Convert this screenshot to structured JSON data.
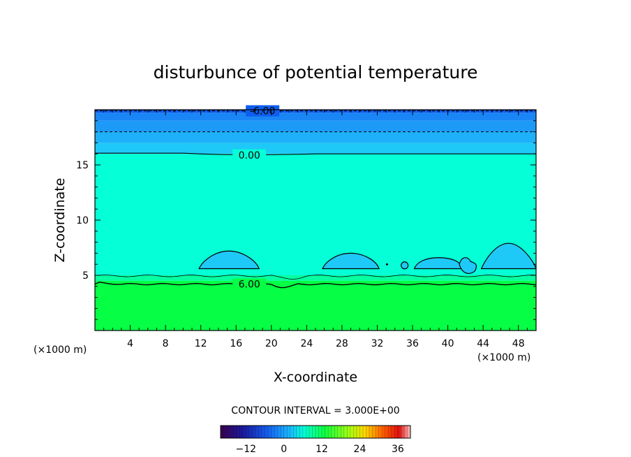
{
  "chart_data": {
    "type": "heatmap",
    "title": "disturbunce of potential temperature",
    "xlabel": "X-coordinate",
    "ylabel": "Z-coordinate",
    "xlim": [
      0,
      50
    ],
    "ylim": [
      0,
      20
    ],
    "x_ticks": [
      4,
      8,
      12,
      16,
      20,
      24,
      28,
      32,
      36,
      40,
      44,
      48
    ],
    "y_ticks": [
      5,
      10,
      15
    ],
    "x_unit": "(×1000 m)",
    "y_unit": "(×1000 m)",
    "contour_labels": [
      {
        "text": "-6.00",
        "x": 19,
        "z": 19.9
      },
      {
        "text": "0.00",
        "x": 17.5,
        "z": 15.9
      },
      {
        "text": "6.00",
        "x": 17.5,
        "z": 4.2
      }
    ],
    "contour_interval": "CONTOUR INTERVAL = 3.000E+00",
    "colorbar": {
      "min": -20,
      "max": 40,
      "ticks": [
        -12,
        0,
        12,
        24,
        36
      ]
    },
    "field_bands": [
      {
        "z_from": 19.7,
        "z_to": 20.0,
        "value": -7.5,
        "color": "#0d5ef0"
      },
      {
        "z_from": 19.0,
        "z_to": 19.7,
        "value": -6,
        "color": "#1a86f5"
      },
      {
        "z_from": 18.0,
        "z_to": 19.0,
        "value": -4.5,
        "color": "#1d9af8"
      },
      {
        "z_from": 17.0,
        "z_to": 18.0,
        "value": -3,
        "color": "#1fb0fa"
      },
      {
        "z_from": 16.0,
        "z_to": 17.0,
        "value": -1.5,
        "color": "#1fc9f7"
      },
      {
        "z_from": 5.0,
        "z_to": 16.0,
        "value": 0,
        "color": "#05ffd6"
      },
      {
        "z_from": 4.5,
        "z_to": 5.0,
        "value": 3,
        "color": "#06ffa0"
      },
      {
        "z_from": 0.0,
        "z_to": 4.5,
        "value": 6,
        "color": "#06ff45"
      }
    ],
    "cold_blobs": [
      {
        "x_from": 11.8,
        "x_to": 18.6,
        "z_top": 7.2,
        "value": -3
      },
      {
        "x_from": 25.8,
        "x_to": 32.2,
        "z_top": 7.0,
        "value": -3
      },
      {
        "x_from": 36.2,
        "x_to": 41.7,
        "z_top": 6.6,
        "value": -3
      },
      {
        "x_from": 43.8,
        "x_to": 50.0,
        "z_top": 7.9,
        "value": -3
      }
    ],
    "grid": false
  }
}
